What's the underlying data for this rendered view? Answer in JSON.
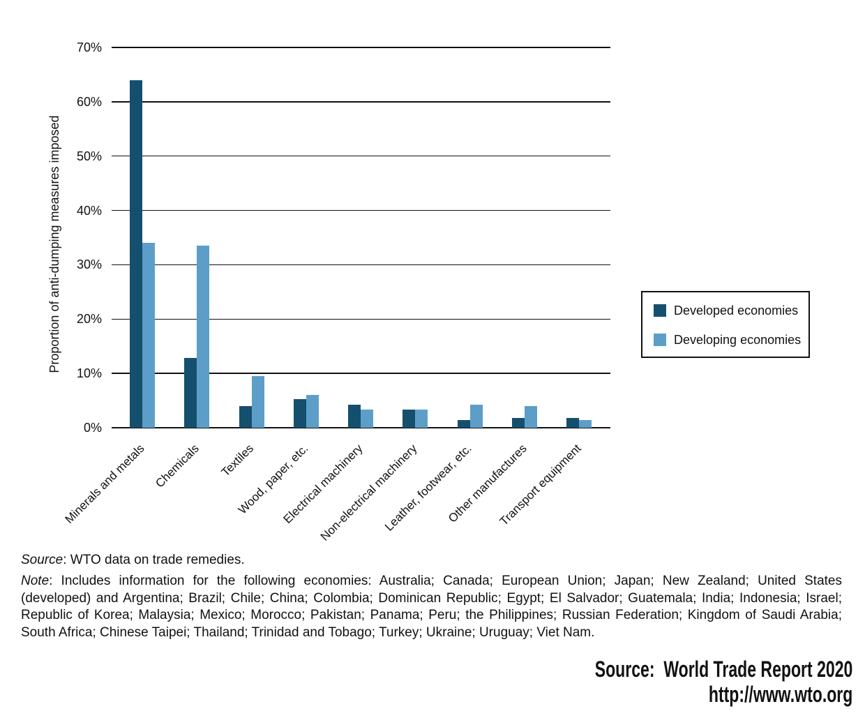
{
  "chart_data": {
    "type": "bar",
    "title": "",
    "ylabel": "Proportion of anti-dumping measures imposed",
    "ylim": [
      0,
      70
    ],
    "ytick_step": 10,
    "ytick_suffix": "%",
    "grid": true,
    "legend_position": "right",
    "categories": [
      "Minerals and metals",
      "Chemicals",
      "Textiles",
      "Wood, paper, etc.",
      "Electrical machinery",
      "Non-electrical machinery",
      "Leather, footwear, etc.",
      "Other manufactures",
      "Transport equipment"
    ],
    "series": [
      {
        "name": "Developed economies",
        "color": "#14506e",
        "values": [
          64,
          12.8,
          4,
          5.3,
          4.3,
          3.3,
          1.4,
          1.8,
          1.8
        ]
      },
      {
        "name": "Developing economies",
        "color": "#5c9ec8",
        "values": [
          34,
          33.5,
          9.5,
          6,
          3.3,
          3.3,
          4.2,
          4,
          1.4
        ]
      }
    ]
  },
  "footnotes": {
    "source_label": "Source",
    "source_rest": ": WTO data on trade remedies.",
    "note_label": "Note",
    "note_line1_rest": ": Includes information for the following economies: Australia; Canada; European Union; Japan; New Zealand; United States",
    "note_line2": "(developed) and Argentina; Brazil; Chile; China; Colombia; Dominican Republic; Egypt; El Salvador; Guatemala; India; Indonesia; Israel;",
    "note_line3": "Republic of Korea; Malaysia; Mexico; Morocco; Pakistan; Panama; Peru; the Philippines; Russian Federation; Kingdom of Saudi Arabia;",
    "note_line4": "South Africa; Chinese Taipei; Thailand; Trinidad and Tobago; Turkey; Ukraine; Uruguay; Viet Nam."
  },
  "attribution": {
    "source_line": "Source:  World Trade Report 2020",
    "url_line": "http://www.wto.org"
  }
}
